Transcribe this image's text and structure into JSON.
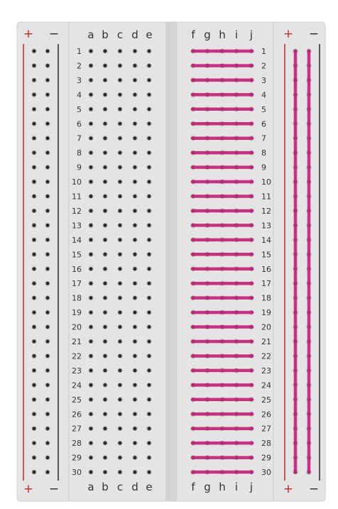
{
  "breadboard": {
    "rows": [
      "1",
      "2",
      "3",
      "4",
      "5",
      "6",
      "7",
      "8",
      "9",
      "10",
      "11",
      "12",
      "13",
      "14",
      "15",
      "16",
      "17",
      "18",
      "19",
      "20",
      "21",
      "22",
      "23",
      "24",
      "25",
      "26",
      "27",
      "28",
      "29",
      "30"
    ],
    "left_columns": [
      "a",
      "b",
      "c",
      "d",
      "e"
    ],
    "right_columns": [
      "f",
      "g",
      "h",
      "i",
      "j"
    ],
    "rail_plus": "+",
    "rail_minus": "−",
    "colors": {
      "board": "#e4e4e4",
      "board_edge": "#cfcfcf",
      "channel": "#d4d4d4",
      "hole": "#2b2b2b",
      "hole_ring": "#9d9d9d",
      "plus_line": "#c0282b",
      "minus_line": "#2a2a2a",
      "highlight": "#c8277c"
    },
    "highlighted": {
      "right_terminal_strips": "all rows f–j",
      "right_power_rails": [
        "+",
        "−"
      ]
    }
  }
}
